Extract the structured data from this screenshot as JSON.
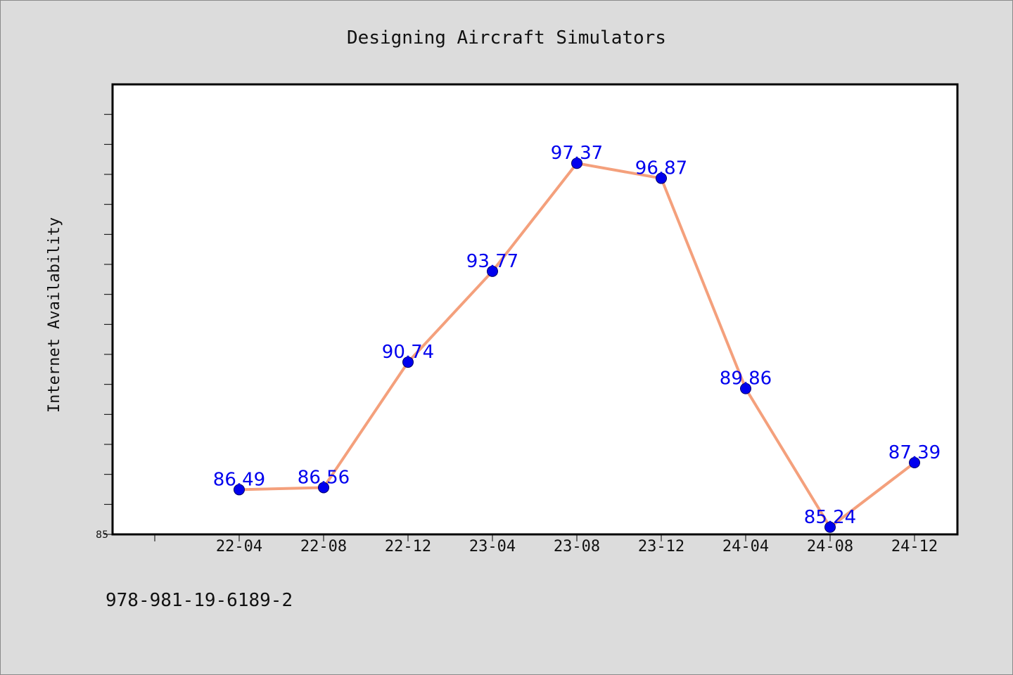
{
  "chart_data": {
    "type": "line",
    "title": "Designing Aircraft Simulators",
    "xlabel": "",
    "ylabel": "Internet Availability",
    "categories": [
      "22-04",
      "22-08",
      "22-12",
      "23-04",
      "23-08",
      "23-12",
      "24-04",
      "24-08",
      "24-12"
    ],
    "series": [
      {
        "values": [
          86.49,
          86.56,
          90.74,
          93.77,
          97.37,
          96.87,
          89.86,
          85.24,
          87.39
        ]
      }
    ],
    "data_labels": [
      "86.49",
      "86.56",
      "90.74",
      "93.77",
      "97.37",
      "96.87",
      "89.86",
      "85.24",
      "87.39"
    ],
    "ylim": [
      85,
      100
    ],
    "y_tick_labels": [
      "85"
    ],
    "grid": false,
    "colors": {
      "line": "#f4a07c",
      "marker": "#0000ee",
      "label": "#0000ee",
      "background": "#dcdcdc",
      "plot_background": "#ffffff"
    }
  },
  "footer_text": "978-981-19-6189-2"
}
